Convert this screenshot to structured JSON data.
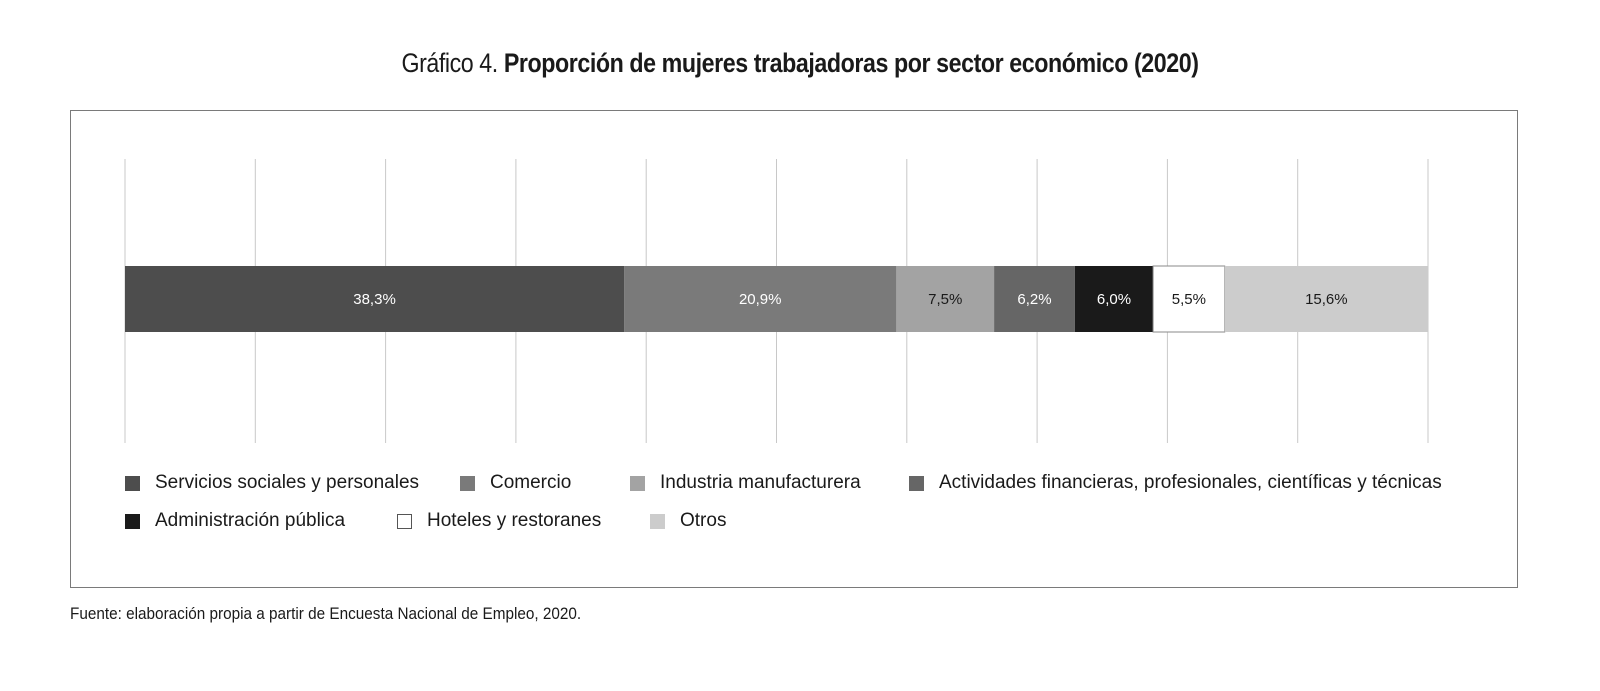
{
  "title": {
    "prefix": "Gráfico 4.",
    "main": "Proporción de mujeres trabajadoras por sector económico (2020)"
  },
  "source": "Fuente: elaboración propia a partir de Encuesta Nacional de Empleo, 2020.",
  "chart_data": {
    "type": "bar",
    "orientation": "horizontal-stacked-100",
    "title": "Proporción de mujeres trabajadoras por sector económico (2020)",
    "xlabel": "",
    "ylabel": "",
    "xlim": [
      0,
      100
    ],
    "grid": true,
    "legend_position": "bottom",
    "series": [
      {
        "name": "Servicios sociales y personales",
        "value": 38.3,
        "label": "38,3%",
        "color": "#4d4d4d",
        "label_color": "#ffffff"
      },
      {
        "name": "Comercio",
        "value": 20.9,
        "label": "20,9%",
        "color": "#7a7a7a",
        "label_color": "#ffffff"
      },
      {
        "name": "Industria manufacturera",
        "value": 7.5,
        "label": "7,5%",
        "color": "#a3a3a3",
        "label_color": "#1a1a1a"
      },
      {
        "name": "Actividades financieras, profesionales, científicas y técnicas",
        "value": 6.2,
        "label": "6,2%",
        "color": "#666666",
        "label_color": "#ffffff"
      },
      {
        "name": "Administración pública",
        "value": 6.0,
        "label": "6,0%",
        "color": "#1a1a1a",
        "label_color": "#ffffff"
      },
      {
        "name": "Hoteles y restoranes",
        "value": 5.5,
        "label": "5,5%",
        "color": "#ffffff",
        "label_color": "#1a1a1a"
      },
      {
        "name": "Otros",
        "value": 15.6,
        "label": "15,6%",
        "color": "#cccccc",
        "label_color": "#1a1a1a"
      }
    ]
  }
}
